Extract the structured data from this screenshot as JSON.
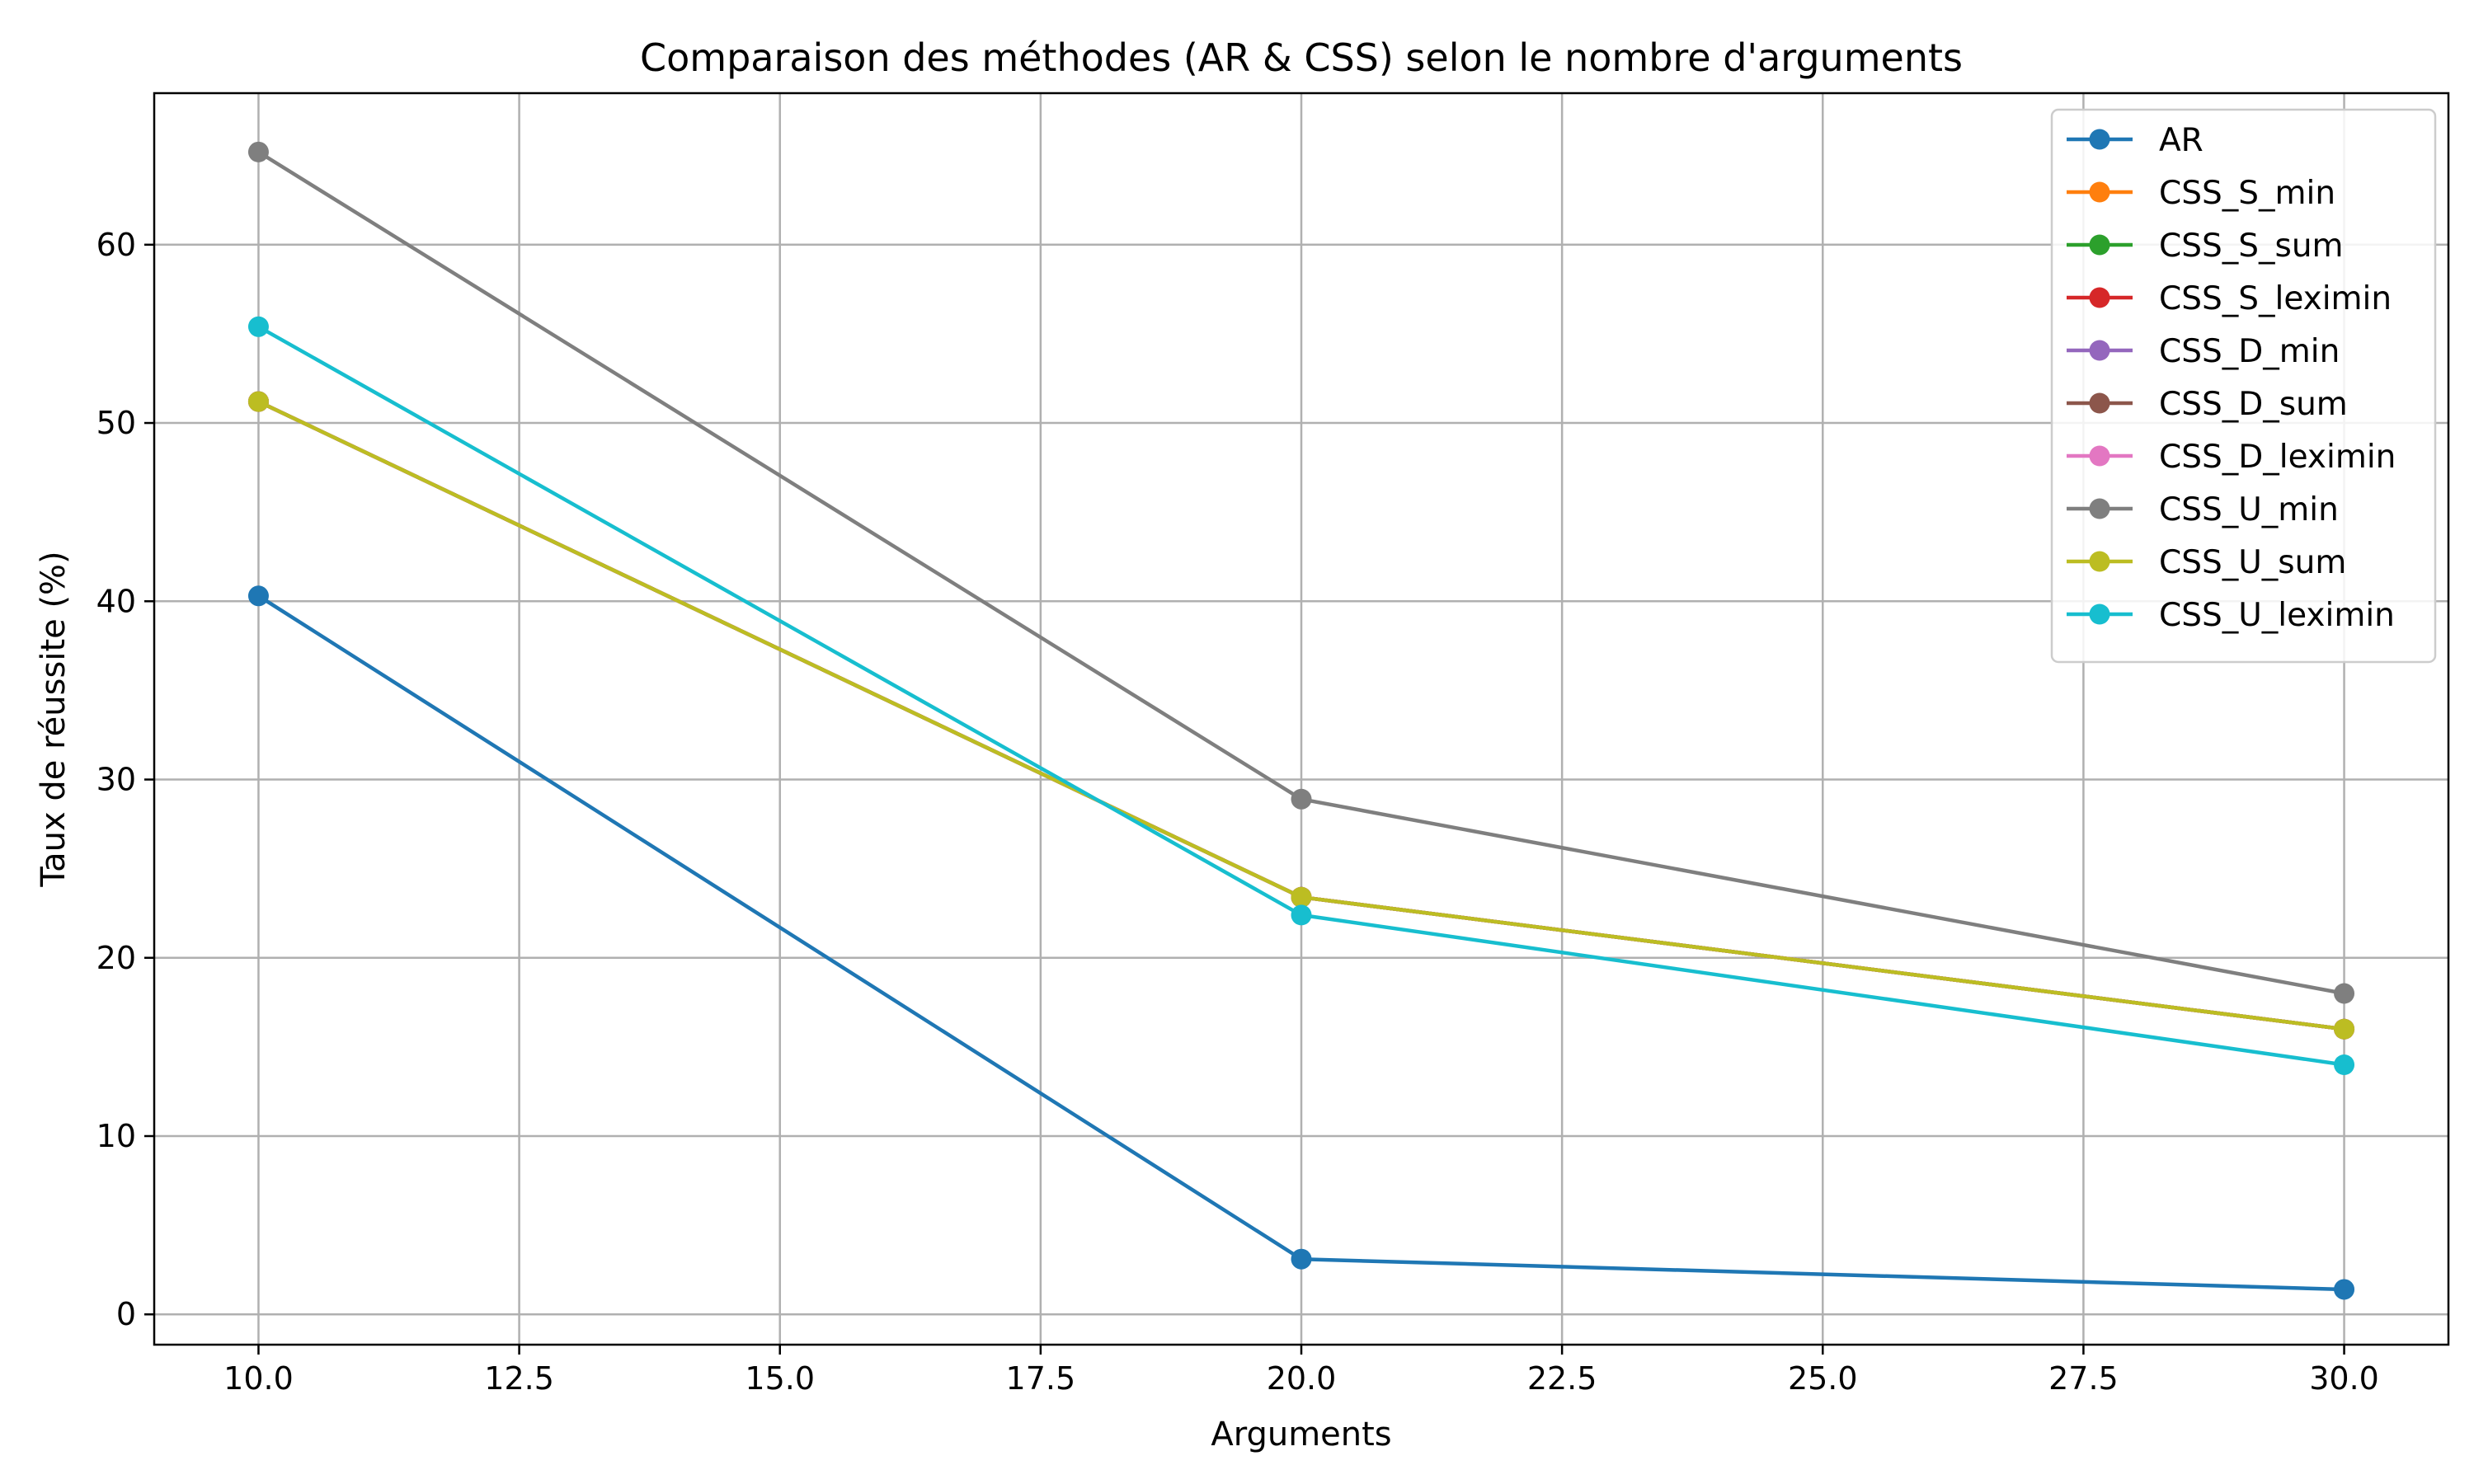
{
  "chart_data": {
    "type": "line",
    "title": "Comparaison des méthodes (AR & CSS) selon le nombre d'arguments",
    "xlabel": "Arguments",
    "ylabel": "Taux de réussite (%)",
    "xlim": [
      9.0,
      31.0
    ],
    "ylim": [
      -1.7,
      68.5
    ],
    "xticks": [
      10.0,
      12.5,
      15.0,
      17.5,
      20.0,
      22.5,
      25.0,
      27.5,
      30.0
    ],
    "xtick_labels": [
      "10.0",
      "12.5",
      "15.0",
      "17.5",
      "20.0",
      "22.5",
      "25.0",
      "27.5",
      "30.0"
    ],
    "yticks": [
      0,
      10,
      20,
      30,
      40,
      50,
      60
    ],
    "ytick_labels": [
      "0",
      "10",
      "20",
      "30",
      "40",
      "50",
      "60"
    ],
    "grid": true,
    "legend_position": "top-right",
    "x": [
      10,
      20,
      30
    ],
    "series": [
      {
        "name": "AR",
        "color": "#1f77b4",
        "values": [
          40.3,
          3.1,
          1.4
        ]
      },
      {
        "name": "CSS_S_min",
        "color": "#ff7f0e",
        "values": [
          51.2,
          23.4,
          16.0
        ]
      },
      {
        "name": "CSS_S_sum",
        "color": "#2ca02c",
        "values": [
          51.2,
          23.4,
          16.0
        ]
      },
      {
        "name": "CSS_S_leximin",
        "color": "#d62728",
        "values": [
          51.2,
          23.4,
          16.0
        ]
      },
      {
        "name": "CSS_D_min",
        "color": "#9467bd",
        "values": [
          51.2,
          23.4,
          16.0
        ]
      },
      {
        "name": "CSS_D_sum",
        "color": "#8c564b",
        "values": [
          51.2,
          23.4,
          16.0
        ]
      },
      {
        "name": "CSS_D_leximin",
        "color": "#e377c2",
        "values": [
          51.2,
          23.4,
          16.0
        ]
      },
      {
        "name": "CSS_U_min",
        "color": "#7f7f7f",
        "values": [
          65.2,
          28.9,
          18.0
        ]
      },
      {
        "name": "CSS_U_sum",
        "color": "#bcbd22",
        "values": [
          51.2,
          23.4,
          16.0
        ]
      },
      {
        "name": "CSS_U_leximin",
        "color": "#17becf",
        "values": [
          55.4,
          22.4,
          14.0
        ]
      }
    ]
  }
}
